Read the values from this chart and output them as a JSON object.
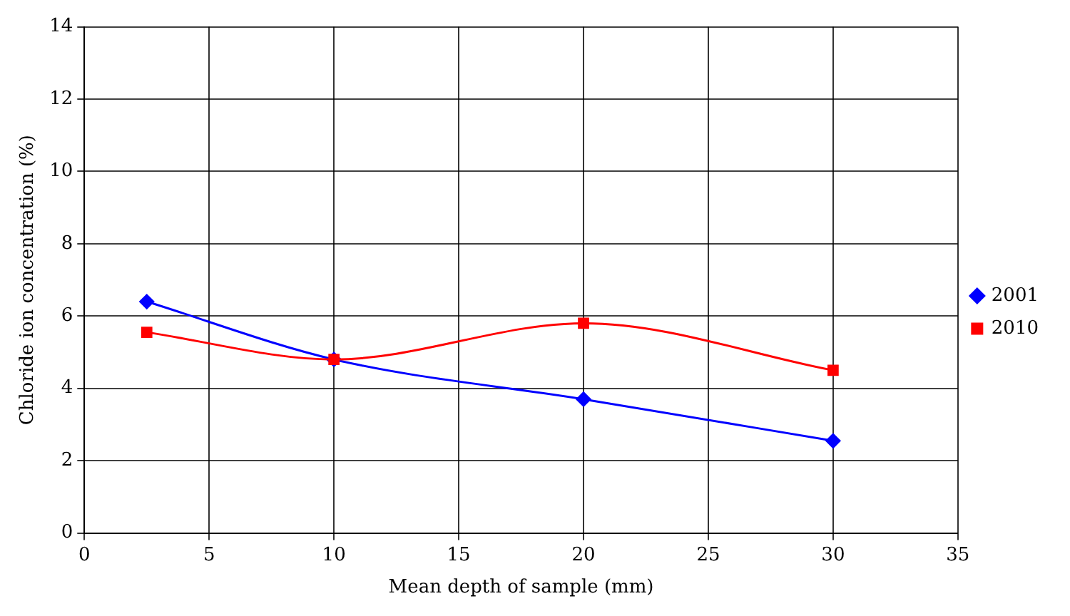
{
  "chart_data": {
    "type": "line",
    "xlabel": "Mean depth of sample (mm)",
    "ylabel": "Chloride ion concentration (%)",
    "xlim": [
      0,
      35
    ],
    "xticks": [
      0,
      5,
      10,
      15,
      20,
      25,
      30,
      35
    ],
    "ylim": [
      0,
      14
    ],
    "yticks": [
      0,
      2,
      4,
      6,
      8,
      10,
      12,
      14
    ],
    "grid": true,
    "legend": "right",
    "line_style": "solid",
    "series": [
      {
        "name": "2001",
        "color": "#0000ff",
        "marker": "diamond",
        "x": [
          2.5,
          10,
          20,
          30
        ],
        "values": [
          6.4,
          4.8,
          3.7,
          2.55
        ]
      },
      {
        "name": "2010",
        "color": "#ff0000",
        "marker": "square",
        "x": [
          2.5,
          10,
          20,
          30
        ],
        "values": [
          5.55,
          4.8,
          5.8,
          4.5
        ]
      }
    ]
  }
}
